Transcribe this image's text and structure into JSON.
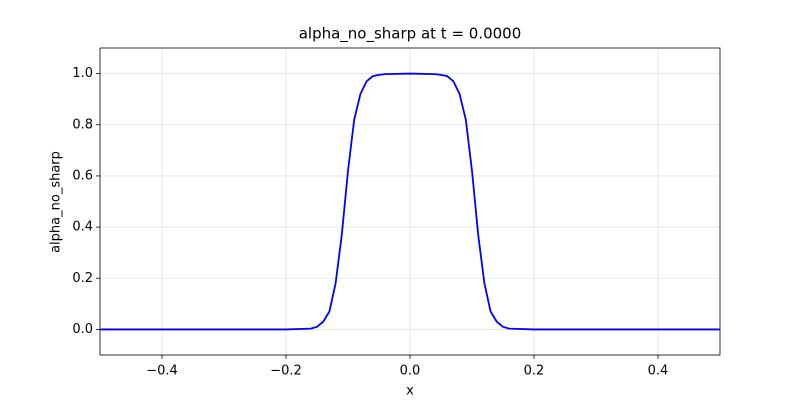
{
  "chart_data": {
    "type": "line",
    "title": "alpha_no_sharp at t = 0.0000",
    "x_label": "x",
    "y_label": "alpha_no_sharp",
    "x": [
      -0.5,
      -0.2,
      -0.16,
      -0.15,
      -0.14,
      -0.13,
      -0.12,
      -0.11,
      -0.1,
      -0.09,
      -0.08,
      -0.07,
      -0.06,
      -0.05,
      -0.04,
      0,
      0.04,
      0.05,
      0.06,
      0.07,
      0.08,
      0.09,
      0.1,
      0.11,
      0.12,
      0.13,
      0.14,
      0.15,
      0.16,
      0.2,
      0.5
    ],
    "series": [
      {
        "name": "alpha_no_sharp",
        "color": "#0000ff",
        "values": [
          0,
          0,
          0.003,
          0.01,
          0.03,
          0.07,
          0.18,
          0.37,
          0.62,
          0.82,
          0.92,
          0.97,
          0.99,
          0.995,
          0.998,
          1.0,
          0.998,
          0.995,
          0.99,
          0.97,
          0.92,
          0.82,
          0.62,
          0.37,
          0.18,
          0.07,
          0.03,
          0.01,
          0.003,
          0,
          0
        ]
      }
    ],
    "xlim": [
      -0.5,
      0.5
    ],
    "ylim": [
      -0.1,
      1.1
    ],
    "xticks": [
      {
        "value": -0.4,
        "label": "−0.4"
      },
      {
        "value": -0.2,
        "label": "−0.2"
      },
      {
        "value": 0,
        "label": "0.0"
      },
      0.2,
      0.4
    ],
    "yticks": [
      {
        "value": 0,
        "label": "0.0"
      },
      0.2,
      0.4,
      0.6,
      0.8,
      {
        "value": 1,
        "label": "1.0"
      }
    ],
    "grid": true
  }
}
